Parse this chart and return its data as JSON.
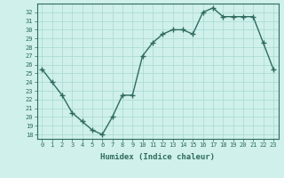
{
  "x": [
    0,
    1,
    2,
    3,
    4,
    5,
    6,
    7,
    8,
    9,
    10,
    11,
    12,
    13,
    14,
    15,
    16,
    17,
    18,
    19,
    20,
    21,
    22,
    23
  ],
  "y": [
    25.5,
    24.0,
    22.5,
    20.5,
    19.5,
    18.5,
    18.0,
    20.0,
    22.5,
    22.5,
    27.0,
    28.5,
    29.5,
    30.0,
    30.0,
    29.5,
    32.0,
    32.5,
    31.5,
    31.5,
    31.5,
    31.5,
    28.5,
    25.5
  ],
  "xlabel": "Humidex (Indice chaleur)",
  "xlim": [
    -0.5,
    23.5
  ],
  "ylim": [
    17.5,
    33.0
  ],
  "yticks": [
    18,
    19,
    20,
    21,
    22,
    23,
    24,
    25,
    26,
    27,
    28,
    29,
    30,
    31,
    32
  ],
  "xtick_labels": [
    "0",
    "1",
    "2",
    "3",
    "4",
    "5",
    "6",
    "7",
    "8",
    "9",
    "10",
    "11",
    "12",
    "13",
    "14",
    "15",
    "16",
    "17",
    "18",
    "19",
    "20",
    "21",
    "22",
    "23"
  ],
  "line_color": "#2e6b5e",
  "marker": "+",
  "marker_size": 4,
  "bg_color": "#cff0eb",
  "grid_color": "#a8d8d0",
  "spine_color": "#2e6b5e",
  "line_width": 1.0,
  "tick_fontsize": 5.0,
  "xlabel_fontsize": 6.5
}
